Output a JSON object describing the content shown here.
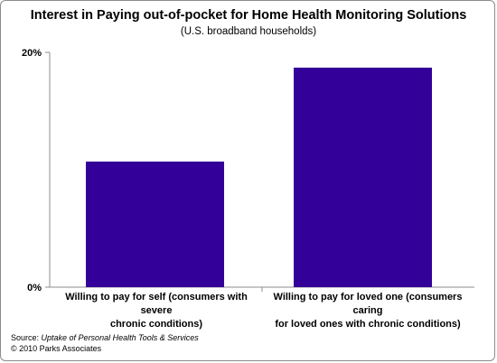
{
  "chart_data": {
    "type": "bar",
    "title": "Interest in Paying out-of-pocket for Home Health Monitoring Solutions",
    "subtitle": "(U.S. broadband households)",
    "categories": [
      "Willing to pay for self (consumers with severe chronic conditions)",
      "Willing to pay for loved one (consumers caring for loved ones with chronic conditions)"
    ],
    "category_lines": [
      [
        "Willing to pay for self (consumers with severe",
        "chronic conditions)"
      ],
      [
        "Willing to pay for loved one (consumers caring",
        "for loved ones with chronic conditions)"
      ]
    ],
    "values": [
      10.7,
      18.7
    ],
    "yticks": [
      "0%",
      "20%"
    ],
    "ylim": [
      0,
      20
    ],
    "grid": false,
    "bar_color": "#330099"
  },
  "source": {
    "prefix": "Source: ",
    "title": "Uptake of Personal Health Tools & Services",
    "copyright": "© 2010 Parks Associates"
  }
}
